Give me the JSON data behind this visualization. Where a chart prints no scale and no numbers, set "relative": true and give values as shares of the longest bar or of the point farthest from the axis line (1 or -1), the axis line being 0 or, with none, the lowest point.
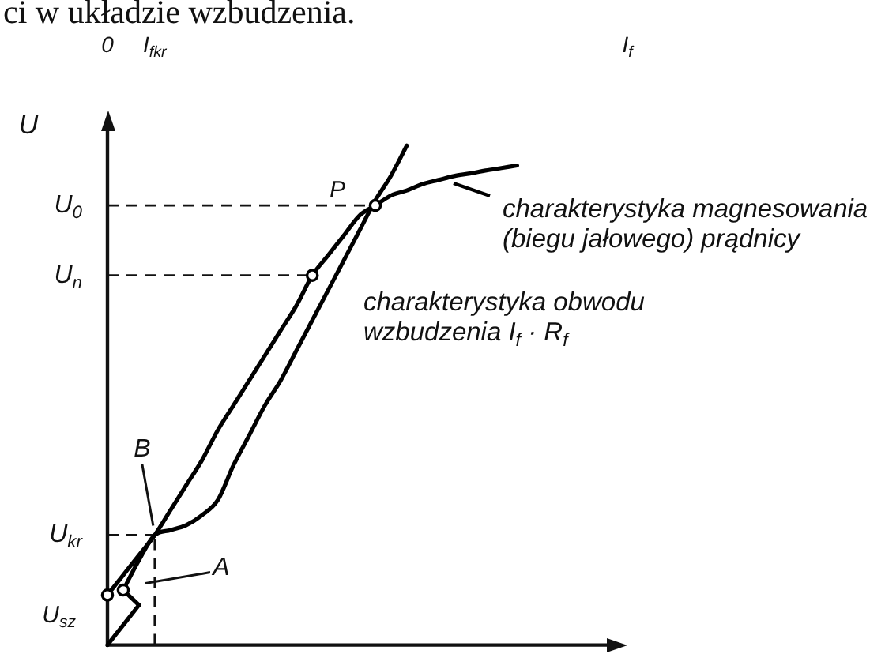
{
  "chart_data": {
    "type": "line",
    "relative": true,
    "ylabel": "U",
    "categories": [
      "0",
      null,
      null,
      "I$_{fkr}$",
      null,
      null,
      null,
      null,
      null,
      null,
      null,
      null,
      null,
      null,
      null,
      null,
      null,
      null,
      null,
      null,
      null,
      null,
      null,
      null,
      null,
      null,
      null,
      null,
      null,
      null,
      null,
      null,
      null,
      "I$_{f}$"
    ],
    "series": [
      {
        "name": "charakterystyka magnesowania (biegu jałowego) prądnicy",
        "color": "#000000",
        "values": [
          0.1,
          0.14,
          0.18,
          0.22,
          0.27,
          0.32,
          0.37,
          0.43,
          0.48,
          0.53,
          0.58,
          0.63,
          0.68,
          0.74,
          0.78,
          0.82,
          0.86,
          0.88,
          0.9,
          0.91,
          0.923,
          0.931,
          0.939,
          0.944,
          0.95,
          0.955,
          0.96,
          null,
          null,
          null,
          null,
          null,
          null,
          null
        ]
      },
      {
        "name": "charakterystyka obwodu wzbudzenia I$_{f}$ · R$_{f}$",
        "color": "#000000",
        "values": [
          null,
          0.11,
          0.17,
          0.22,
          0.23,
          0.24,
          0.26,
          0.29,
          0.36,
          0.42,
          0.48,
          0.53,
          0.59,
          0.65,
          0.71,
          0.77,
          0.83,
          0.89,
          0.94,
          1.0,
          null,
          null,
          null,
          null,
          null,
          null,
          null,
          null,
          null,
          null,
          null,
          null,
          null,
          null
        ]
      },
      {
        "color": "#000000",
        "values": [
          0,
          0.04,
          0.08,
          null,
          null,
          null,
          null,
          null,
          null,
          null,
          null,
          null,
          null,
          null,
          null,
          null,
          null,
          null,
          null,
          null,
          null,
          null,
          null,
          null,
          null,
          null,
          null,
          null,
          null,
          null,
          null,
          null,
          null,
          null
        ]
      },
      {
        "color": "#000000",
        "values": [
          null,
          0.11,
          0.08,
          null,
          null,
          null,
          null,
          null,
          null,
          null,
          null,
          null,
          null,
          null,
          null,
          null,
          null,
          null,
          null,
          null,
          null,
          null,
          null,
          null,
          null,
          null,
          null,
          null,
          null,
          null,
          null,
          null,
          null,
          null
        ]
      },
      {
        "type": "scatter",
        "color": "#000000",
        "marker": "circle",
        "values": [
          0.1,
          0.11,
          null,
          null,
          null,
          null,
          null,
          null,
          null,
          null,
          null,
          null,
          null,
          0.74,
          null,
          null,
          null,
          0.88,
          null,
          null,
          null,
          null,
          null,
          null,
          null,
          null,
          null,
          null,
          null,
          null,
          null,
          null,
          null,
          null
        ]
      }
    ],
    "ref_lines": [
      {
        "axis": "y",
        "value": 0.88,
        "label": "U$_{0}$",
        "line_style": "dashed"
      },
      {
        "axis": "y",
        "value": 0.74,
        "label": "U$_{n}$",
        "line_style": "dashed"
      },
      {
        "axis": "y",
        "value": 0.22,
        "label": "U$_{kr}$",
        "line_style": "dashed"
      },
      {
        "axis": "x",
        "value": "I$_{fkr}$",
        "line_style": "dashed"
      }
    ],
    "annotations": [
      "ci w układzie wzbudzenia.",
      {
        "text": "P",
        "y": 0.88
      },
      {
        "text": "B",
        "x": "I$_{fkr}$",
        "y": 0.22
      },
      "A",
      {
        "text": "U$_{sz}$",
        "x": "0",
        "y": 0.1
      }
    ]
  }
}
